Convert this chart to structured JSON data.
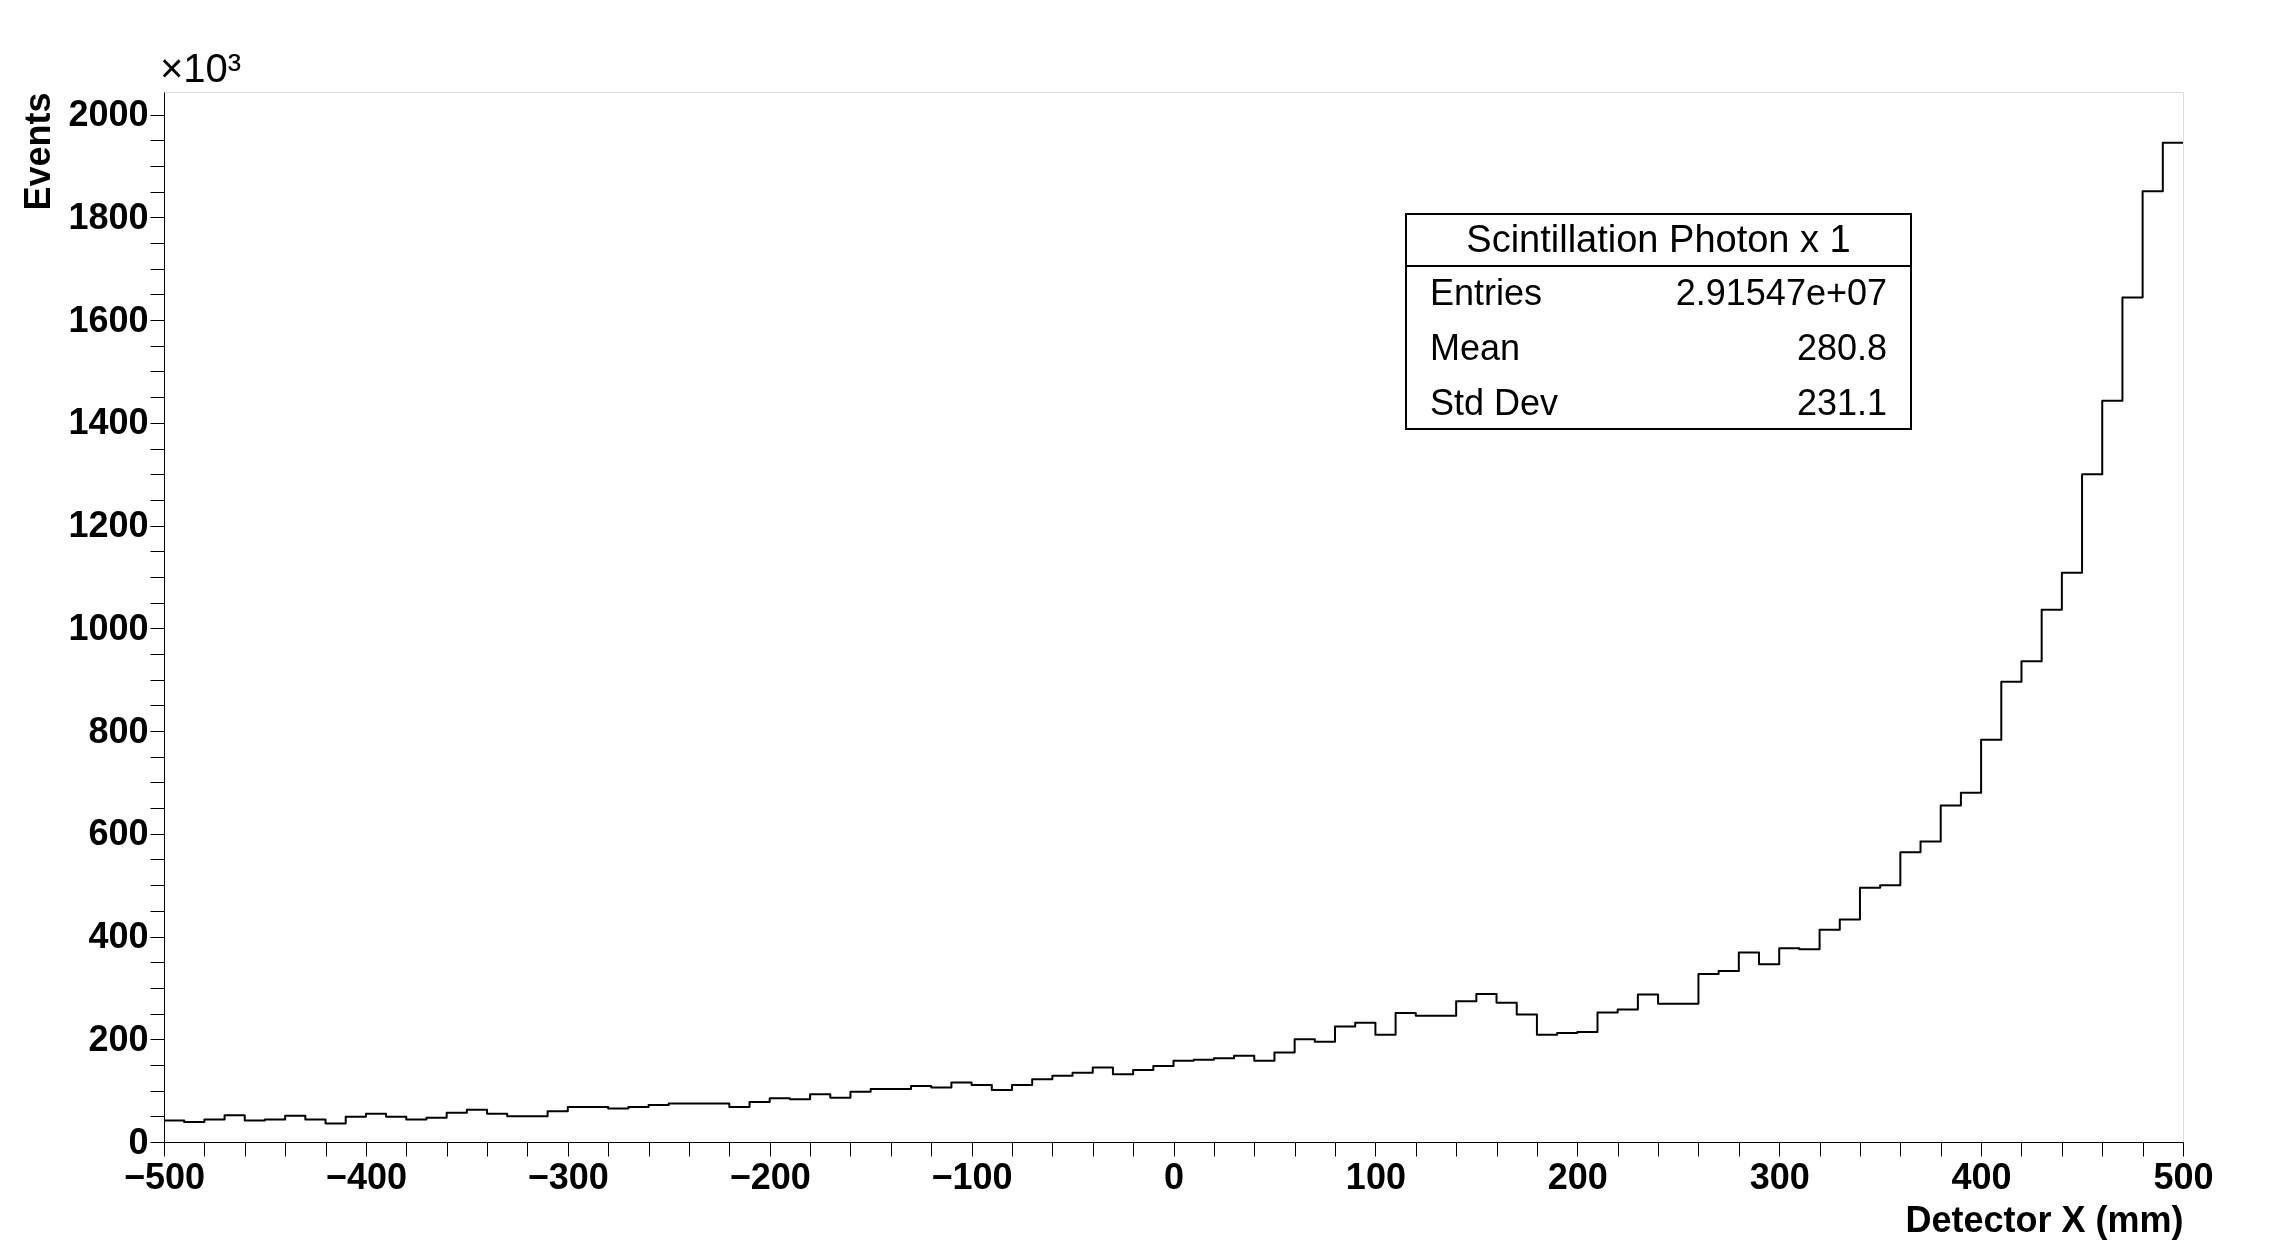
{
  "chart_data": {
    "type": "histogram",
    "xlabel": "Detector X (mm)",
    "ylabel": "Events",
    "bins": [
      -500,
      -490,
      -480,
      -470,
      -460,
      -450,
      -440,
      -430,
      -420,
      -410,
      -400,
      -390,
      -380,
      -370,
      -360,
      -350,
      -340,
      -330,
      -320,
      -310,
      -300,
      -290,
      -280,
      -270,
      -260,
      -250,
      -240,
      -230,
      -220,
      -210,
      -200,
      -190,
      -180,
      -170,
      -160,
      -150,
      -140,
      -130,
      -120,
      -110,
      -100,
      -90,
      -80,
      -70,
      -60,
      -50,
      -40,
      -30,
      -20,
      -10,
      0,
      10,
      20,
      30,
      40,
      50,
      60,
      70,
      80,
      90,
      100,
      110,
      120,
      130,
      140,
      150,
      160,
      170,
      180,
      190,
      200,
      210,
      220,
      230,
      240,
      250,
      260,
      270,
      280,
      290,
      300,
      310,
      320,
      330,
      340,
      350,
      360,
      370,
      380,
      390,
      400,
      410,
      420,
      430,
      440,
      450,
      460,
      470,
      480,
      490,
      500
    ],
    "values": [
      42,
      39,
      44,
      52,
      42,
      44,
      51,
      44,
      36,
      49,
      55,
      49,
      44,
      47,
      57,
      63,
      55,
      50,
      50,
      60,
      68,
      68,
      65,
      68,
      72,
      75,
      75,
      75,
      68,
      78,
      85,
      83,
      93,
      86,
      98,
      103,
      103,
      109,
      106,
      116,
      111,
      101,
      111,
      122,
      129,
      135,
      145,
      132,
      140,
      148,
      158,
      160,
      163,
      168,
      158,
      174,
      200,
      195,
      225,
      232,
      209,
      251,
      246,
      246,
      274,
      288,
      271,
      248,
      209,
      212,
      214,
      252,
      258,
      287,
      269,
      269,
      327,
      333,
      369,
      346,
      377,
      375,
      413,
      433,
      495,
      500,
      564,
      585,
      655,
      680,
      783,
      896,
      936,
      1036,
      1108,
      1300,
      1443,
      1644,
      1851,
      1945
    ],
    "color": "#000000",
    "xlim": [
      -500,
      500
    ],
    "ylim": [
      0,
      2044
    ],
    "xticks": [
      -500,
      {
        "value": -480,
        "label": null
      },
      {
        "value": -460,
        "label": null
      },
      {
        "value": -440,
        "label": null
      },
      {
        "value": -420,
        "label": null
      },
      -400,
      {
        "value": -380,
        "label": null
      },
      {
        "value": -360,
        "label": null
      },
      {
        "value": -340,
        "label": null
      },
      {
        "value": -320,
        "label": null
      },
      -300,
      {
        "value": -280,
        "label": null
      },
      {
        "value": -260,
        "label": null
      },
      {
        "value": -240,
        "label": null
      },
      {
        "value": -220,
        "label": null
      },
      -200,
      {
        "value": -180,
        "label": null
      },
      {
        "value": -160,
        "label": null
      },
      {
        "value": -140,
        "label": null
      },
      {
        "value": -120,
        "label": null
      },
      -100,
      {
        "value": -80,
        "label": null
      },
      {
        "value": -60,
        "label": null
      },
      {
        "value": -40,
        "label": null
      },
      {
        "value": -20,
        "label": null
      },
      0,
      {
        "value": 20,
        "label": null
      },
      {
        "value": 40,
        "label": null
      },
      {
        "value": 60,
        "label": null
      },
      {
        "value": 80,
        "label": null
      },
      100,
      {
        "value": 120,
        "label": null
      },
      {
        "value": 140,
        "label": null
      },
      {
        "value": 160,
        "label": null
      },
      {
        "value": 180,
        "label": null
      },
      200,
      {
        "value": 220,
        "label": null
      },
      {
        "value": 240,
        "label": null
      },
      {
        "value": 260,
        "label": null
      },
      {
        "value": 280,
        "label": null
      },
      300,
      {
        "value": 320,
        "label": null
      },
      {
        "value": 340,
        "label": null
      },
      {
        "value": 360,
        "label": null
      },
      {
        "value": 380,
        "label": null
      },
      400,
      {
        "value": 420,
        "label": null
      },
      {
        "value": 440,
        "label": null
      },
      {
        "value": 460,
        "label": null
      },
      {
        "value": 480,
        "label": null
      },
      500
    ],
    "yticks": [
      0,
      {
        "value": 50,
        "label": null
      },
      {
        "value": 100,
        "label": null
      },
      {
        "value": 150,
        "label": null
      },
      200,
      {
        "value": 250,
        "label": null
      },
      {
        "value": 300,
        "label": null
      },
      {
        "value": 350,
        "label": null
      },
      400,
      {
        "value": 450,
        "label": null
      },
      {
        "value": 500,
        "label": null
      },
      {
        "value": 550,
        "label": null
      },
      600,
      {
        "value": 650,
        "label": null
      },
      {
        "value": 700,
        "label": null
      },
      {
        "value": 750,
        "label": null
      },
      800,
      {
        "value": 850,
        "label": null
      },
      {
        "value": 900,
        "label": null
      },
      {
        "value": 950,
        "label": null
      },
      1000,
      {
        "value": 1050,
        "label": null
      },
      {
        "value": 1100,
        "label": null
      },
      {
        "value": 1150,
        "label": null
      },
      1200,
      {
        "value": 1250,
        "label": null
      },
      {
        "value": 1300,
        "label": null
      },
      {
        "value": 1350,
        "label": null
      },
      1400,
      {
        "value": 1450,
        "label": null
      },
      {
        "value": 1500,
        "label": null
      },
      {
        "value": 1550,
        "label": null
      },
      1600,
      {
        "value": 1650,
        "label": null
      },
      {
        "value": 1700,
        "label": null
      },
      {
        "value": 1750,
        "label": null
      },
      1800,
      {
        "value": 1850,
        "label": null
      },
      {
        "value": 1900,
        "label": null
      },
      {
        "value": 1950,
        "label": null
      },
      2000
    ],
    "annotations": [
      "×10³",
      "Scintillation Photon x 1",
      "Entries",
      "2.91547e+07",
      "Mean",
      "280.8",
      "Std Dev",
      "231.1"
    ]
  }
}
